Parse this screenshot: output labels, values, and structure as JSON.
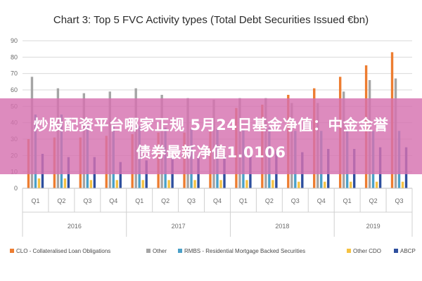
{
  "chart_data": {
    "type": "bar",
    "title": "Chart 3: Top 5 FVC Activity types (Total Debt Securities Issued €bn)",
    "xlabel": "",
    "ylabel": "",
    "ylim": [
      0,
      90
    ],
    "yticks": [
      0,
      10,
      20,
      30,
      40,
      50,
      60,
      70,
      80,
      90
    ],
    "grid": true,
    "legend_position": "bottom",
    "categories": [
      "Q1",
      "Q2",
      "Q3",
      "Q4",
      "Q1",
      "Q2",
      "Q3",
      "Q4",
      "Q1",
      "Q2",
      "Q3",
      "Q4",
      "Q1",
      "Q2",
      "Q3"
    ],
    "year_groups": [
      {
        "label": "2016",
        "count": 4
      },
      {
        "label": "2017",
        "count": 4
      },
      {
        "label": "2018",
        "count": 4
      },
      {
        "label": "2019",
        "count": 3
      }
    ],
    "series": [
      {
        "name": "CLO - Collateralised Loan Obligations",
        "color": "#ed7d31",
        "values": [
          30,
          31,
          31,
          32,
          33,
          34,
          34,
          35,
          49,
          51,
          57,
          61,
          68,
          75,
          83
        ]
      },
      {
        "name": "Other",
        "color": "#a5a5a5",
        "values": [
          68,
          61,
          58,
          59,
          61,
          57,
          55,
          54,
          55,
          55,
          52,
          52,
          59,
          66,
          67
        ]
      },
      {
        "name": "RMBS - Residential Mortgage Backed Securities",
        "color": "#4aa0c8",
        "values": [
          45,
          45,
          38,
          39,
          38,
          37,
          36,
          36,
          36,
          37,
          35,
          35,
          35,
          35,
          35
        ]
      },
      {
        "name": "Other CDO",
        "color": "#f5c242",
        "values": [
          6,
          6,
          5,
          5,
          5,
          5,
          5,
          5,
          5,
          5,
          4,
          4,
          4,
          4,
          4
        ]
      },
      {
        "name": "ABCP",
        "color": "#2e4f9e",
        "values": [
          21,
          19,
          19,
          16,
          17,
          19,
          19,
          20,
          21,
          23,
          22,
          24,
          24,
          25,
          25
        ]
      }
    ]
  },
  "banner": {
    "line1": "炒股配资平台哪家正规 5月24日基金净值：中金金誉",
    "line2": "债券最新净值1.0106"
  }
}
